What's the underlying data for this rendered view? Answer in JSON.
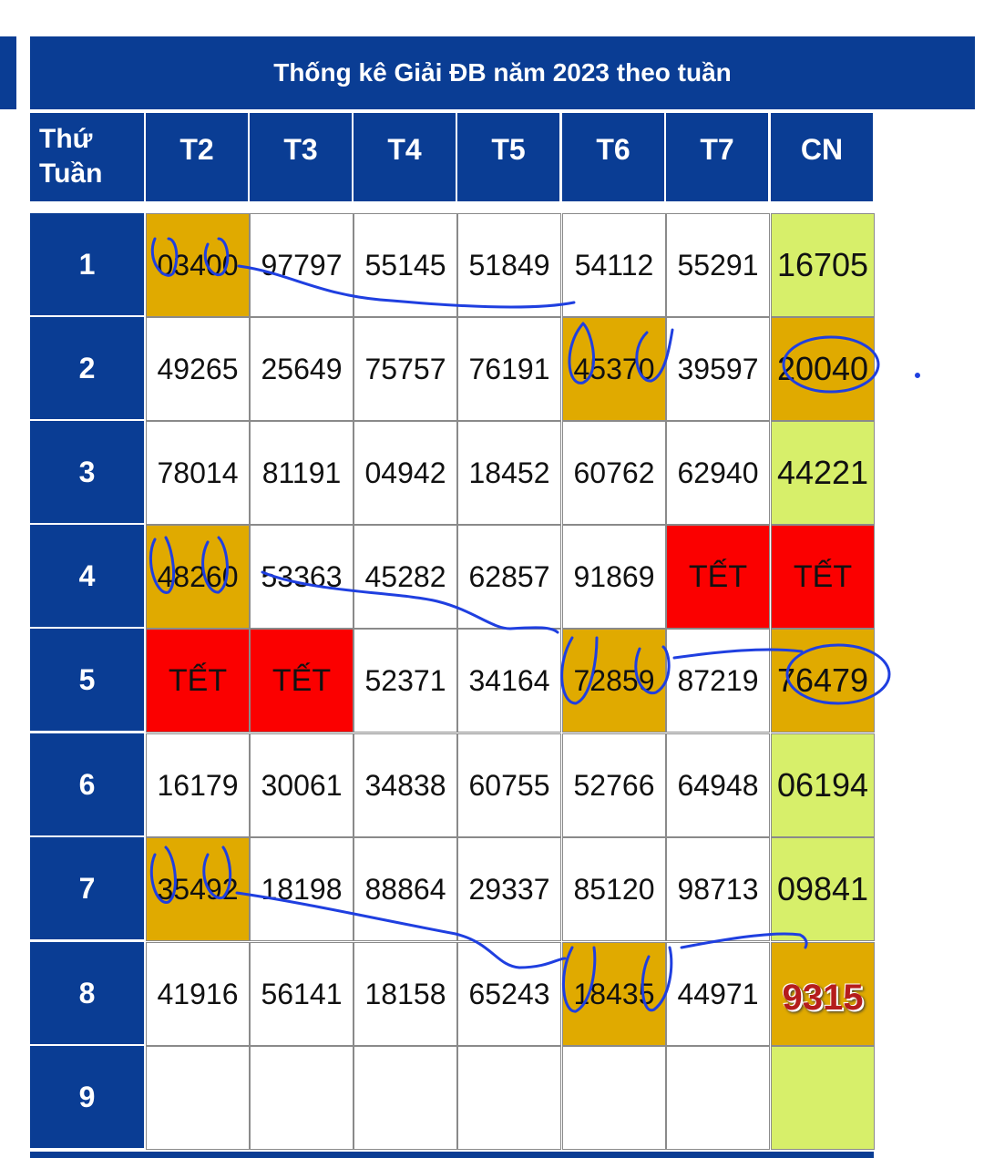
{
  "title": "Thống kê Giải ĐB năm 2023 theo tuần",
  "header": {
    "corner_line1": "Thứ",
    "corner_line2": "Tuần",
    "days": [
      "T2",
      "T3",
      "T4",
      "T5",
      "T6",
      "T7",
      "CN"
    ]
  },
  "weeks": [
    {
      "label": "1",
      "cells": [
        "03400",
        "97797",
        "55145",
        "51849",
        "54112",
        "55291",
        "16705"
      ]
    },
    {
      "label": "2",
      "cells": [
        "49265",
        "25649",
        "75757",
        "76191",
        "45370",
        "39597",
        "20040"
      ]
    },
    {
      "label": "3",
      "cells": [
        "78014",
        "81191",
        "04942",
        "18452",
        "60762",
        "62940",
        "44221"
      ]
    },
    {
      "label": "4",
      "cells": [
        "48260",
        "53363",
        "45282",
        "62857",
        "91869",
        "TẾT",
        "TẾT"
      ]
    },
    {
      "label": "5",
      "cells": [
        "TẾT",
        "TẾT",
        "52371",
        "34164",
        "72859",
        "87219",
        "76479"
      ]
    },
    {
      "label": "6",
      "cells": [
        "16179",
        "30061",
        "34838",
        "60755",
        "52766",
        "64948",
        "06194"
      ]
    },
    {
      "label": "7",
      "cells": [
        "35492",
        "18198",
        "88864",
        "29337",
        "85120",
        "98713",
        "09841"
      ]
    },
    {
      "label": "8",
      "cells": [
        "41916",
        "56141",
        "18158",
        "65243",
        "18435",
        "44971",
        "9315"
      ]
    },
    {
      "label": "9",
      "cells": [
        "",
        "",
        "",
        "",
        "",
        "",
        ""
      ]
    }
  ],
  "colors": {
    "header_blue": "#0a3d94",
    "highlight": "#e0aa00",
    "tet": "#fb0000",
    "sunday": "#d7ef6a",
    "ink": "#1f3fe0"
  }
}
